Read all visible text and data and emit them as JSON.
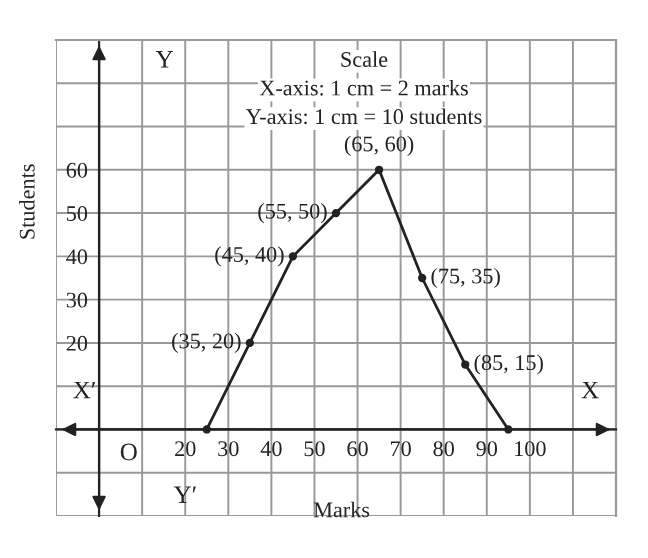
{
  "chart_data": {
    "type": "line",
    "xlabel": "Marks",
    "ylabel": "Students",
    "x": [
      25,
      35,
      45,
      55,
      65,
      75,
      85,
      95
    ],
    "series": [
      {
        "color": "#222222",
        "values": [
          0,
          20,
          40,
          50,
          60,
          35,
          15,
          0
        ],
        "value_labels": [
          null,
          "(35, 20)",
          "(45, 40)",
          "(55, 50)",
          "(65, 60)",
          "(75, 35)",
          "(85, 15)",
          null
        ]
      }
    ],
    "xlim": [
      -10,
      120
    ],
    "ylim": [
      -20,
      90
    ],
    "xticks": [
      20,
      30,
      40,
      50,
      60,
      70,
      80,
      90,
      100
    ],
    "yticks": [
      20,
      30,
      40,
      50,
      60
    ],
    "grid": true,
    "marker": "circle",
    "line_style": "solid",
    "legend": false,
    "annotations": [
      "Scale",
      "X-axis: 1 cm = 2 marks",
      "Y-axis: 1 cm = 10 students",
      "X′",
      "X",
      "Y",
      "Y′",
      "O"
    ]
  }
}
